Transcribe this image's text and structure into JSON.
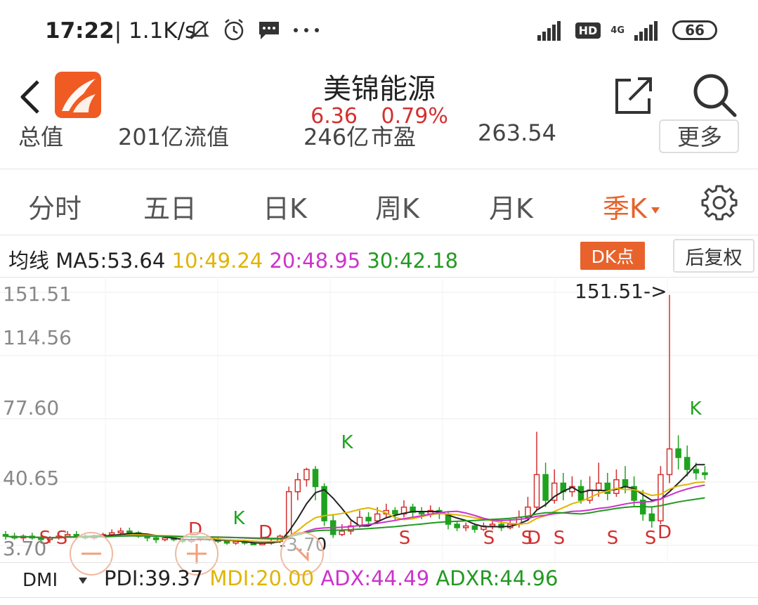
{
  "status_bar": {
    "time": "17:22",
    "speed": "| 1.1K/s",
    "icons": [
      "notification-muted-icon",
      "alarm-icon",
      "message-icon",
      "more-dots-icon"
    ],
    "hd": "HD",
    "network": "4G",
    "battery": "66"
  },
  "header": {
    "stock_name": "美锦能源",
    "price": "6.36",
    "change_pct": "0.79%",
    "price_color": "#d33030"
  },
  "partial_row": {
    "items": [
      "总值",
      "201亿",
      "流值",
      "246亿",
      "市盈",
      "263.54"
    ],
    "more": "更多"
  },
  "period_tabs": {
    "items": [
      {
        "label": "分时"
      },
      {
        "label": "五日"
      },
      {
        "label": "日K"
      },
      {
        "label": "周K"
      },
      {
        "label": "月K"
      },
      {
        "label": "季K"
      }
    ],
    "active_index": 5,
    "active_color": "#e8622b"
  },
  "ma_row": {
    "prefix": "均线",
    "ma5": "MA5:53.64",
    "ma10": "10:49.24",
    "ma20": "20:48.95",
    "ma30": "30:42.18",
    "colors": {
      "ma5": "#222222",
      "ma10": "#e0b400",
      "ma20": "#cc33cc",
      "ma30": "#229922"
    },
    "dk_button": "DK点",
    "restore_button": "后复权"
  },
  "chart_data": {
    "type": "candlestick",
    "y_ticks": [
      "151.51",
      "114.56",
      "77.60",
      "40.65",
      "3.70"
    ],
    "max_marker": "151.51->",
    "min_marker": "3.70",
    "grid": true,
    "up_color": "#d33030",
    "down_color": "#1fa31f",
    "signal_markers": [
      "S",
      "S",
      "D",
      "K",
      "D",
      "K",
      "S",
      "S",
      "S",
      "D",
      "S",
      "S",
      "S",
      "D",
      "K"
    ],
    "zoom_controls": [
      "zoom-out",
      "zoom-in",
      "reset"
    ]
  },
  "dmi_row": {
    "indicator": "DMI",
    "pdi": "PDI:39.37",
    "mdi": "MDI:20.00",
    "adx": "ADX:44.49",
    "adxr": "ADXR:44.96",
    "colors": {
      "pdi": "#222222",
      "mdi": "#e0b400",
      "adx": "#cc33cc",
      "adxr": "#229922"
    }
  }
}
